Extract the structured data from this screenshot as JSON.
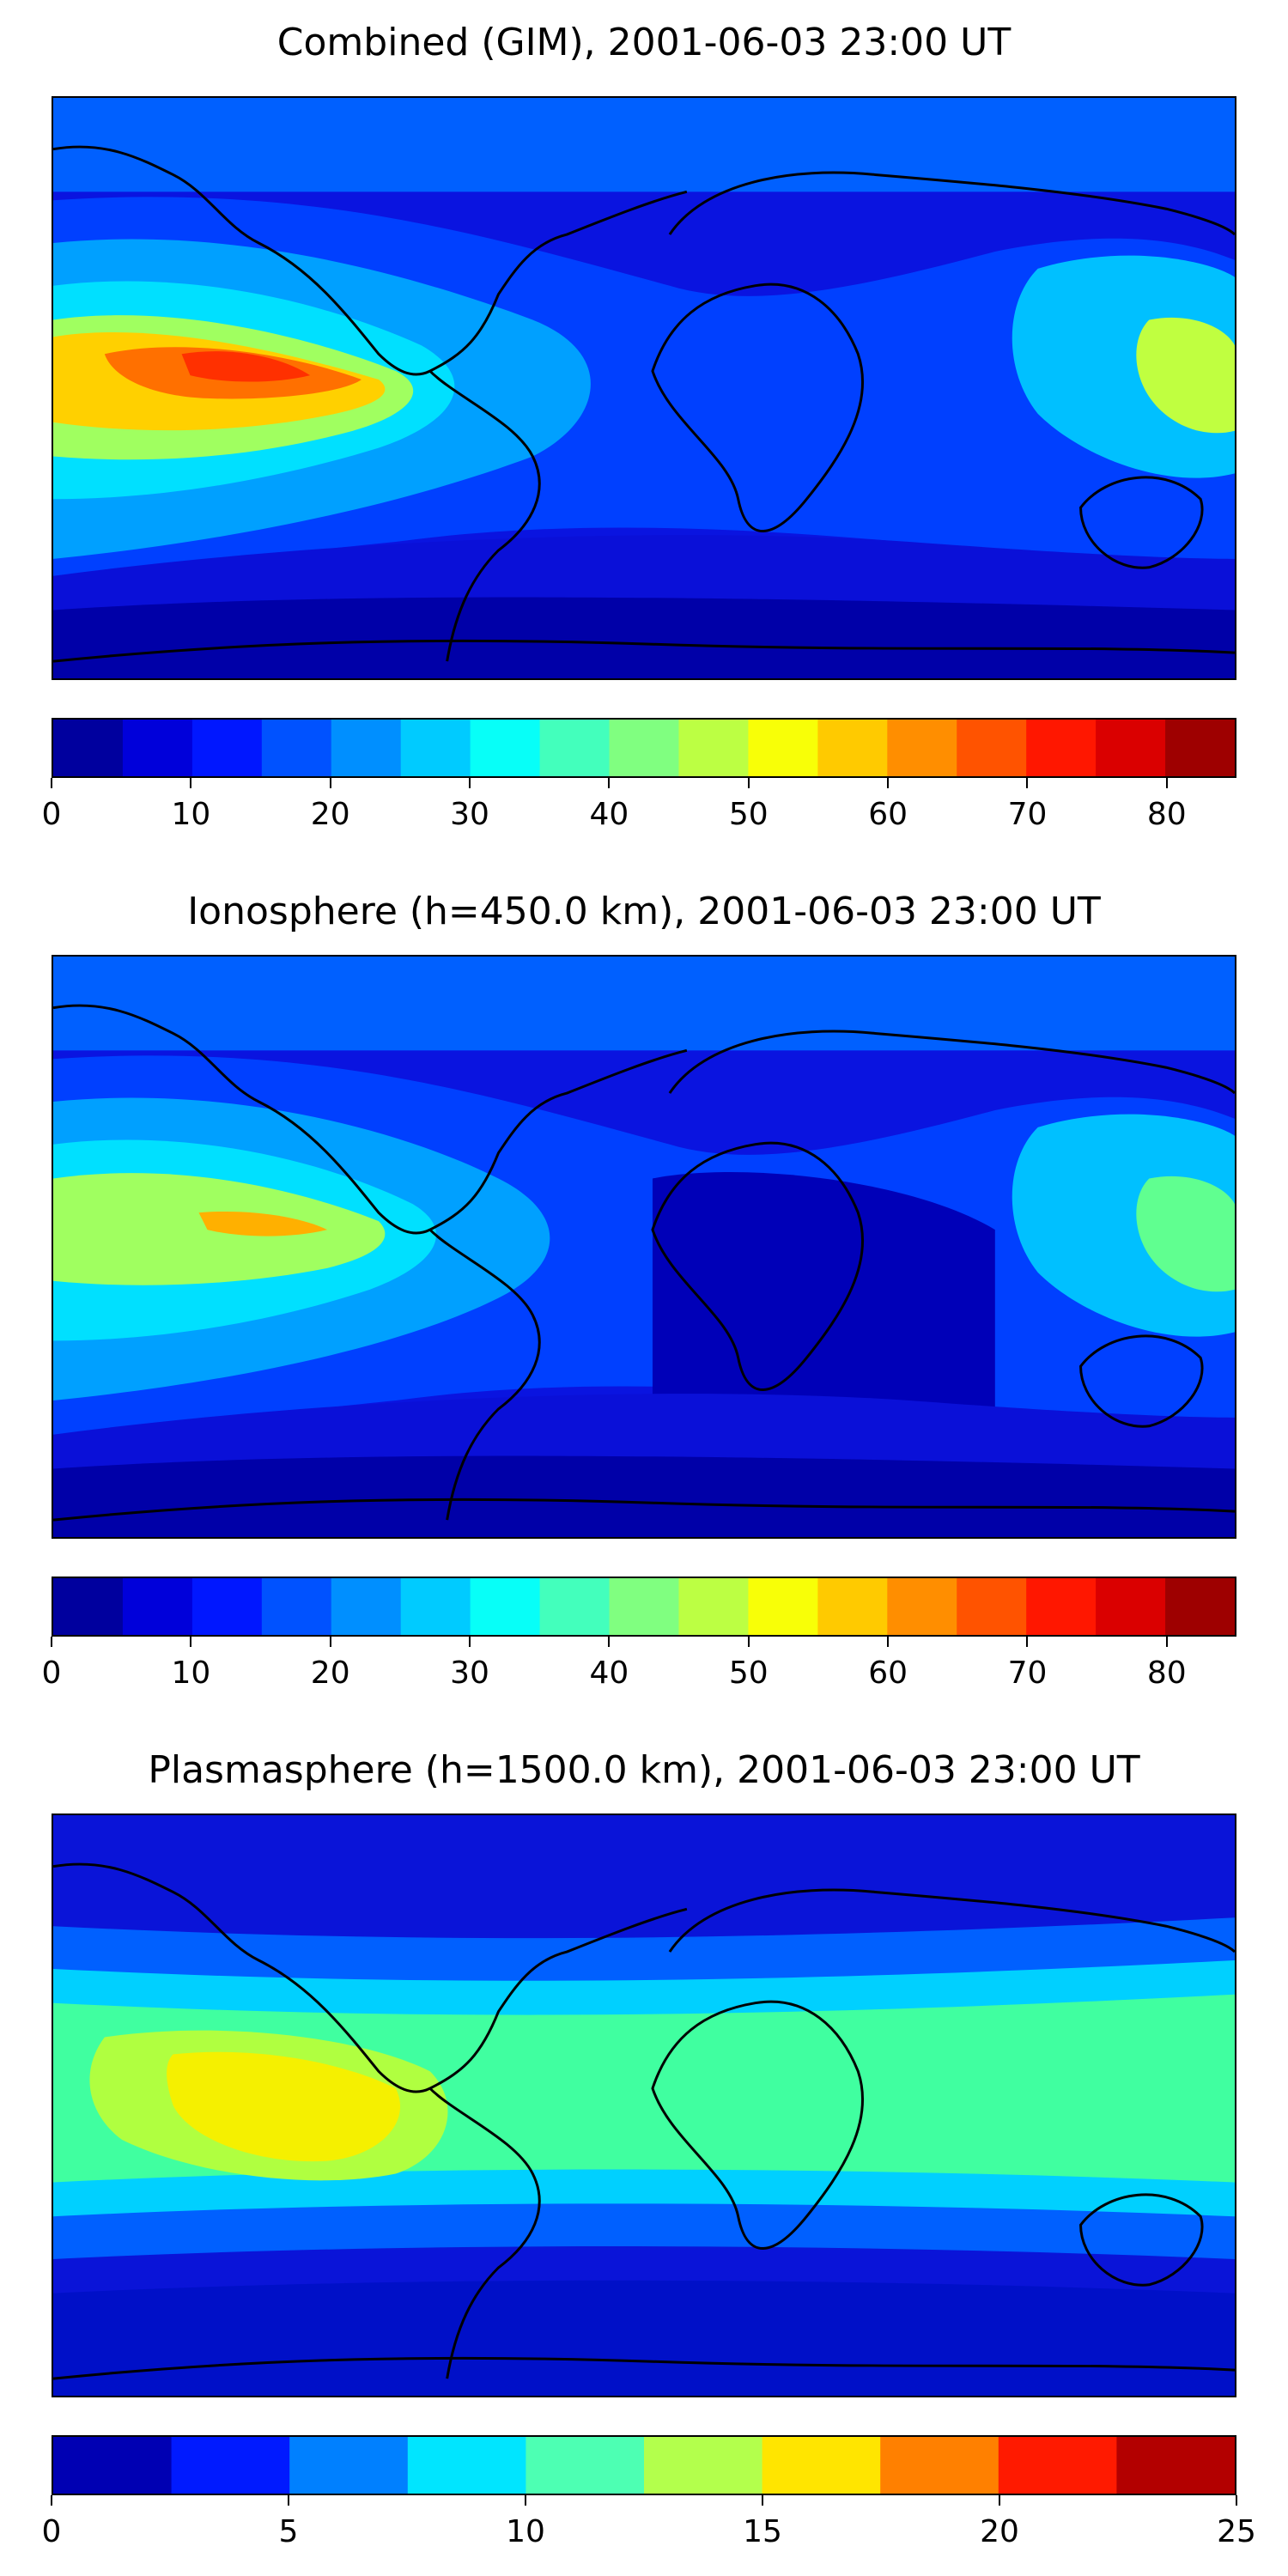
{
  "panels": [
    {
      "title": "Combined (GIM), 2001-06-03 23:00 UT",
      "levels": [
        0,
        5,
        10,
        15,
        20,
        25,
        30,
        35,
        40,
        45,
        50,
        55,
        60,
        65,
        70,
        75,
        80,
        85
      ],
      "ticks": [
        0,
        10,
        20,
        30,
        40,
        50,
        60,
        70,
        80
      ],
      "range": [
        0,
        85
      ]
    },
    {
      "title": "Ionosphere  (h=450.0 km), 2001-06-03 23:00 UT",
      "levels": [
        0,
        5,
        10,
        15,
        20,
        25,
        30,
        35,
        40,
        45,
        50,
        55,
        60,
        65,
        70,
        75,
        80,
        85
      ],
      "ticks": [
        0,
        10,
        20,
        30,
        40,
        50,
        60,
        70,
        80
      ],
      "range": [
        0,
        85
      ]
    },
    {
      "title": "Plasmasphere (h=1500.0 km), 2001-06-03 23:00 UT",
      "levels": [
        0,
        2.5,
        5,
        7.5,
        10,
        12.5,
        15,
        17.5,
        20,
        22.5,
        25
      ],
      "ticks": [
        0,
        5,
        10,
        15,
        20,
        25
      ],
      "range": [
        0,
        25
      ]
    }
  ],
  "colormap": "jet"
}
